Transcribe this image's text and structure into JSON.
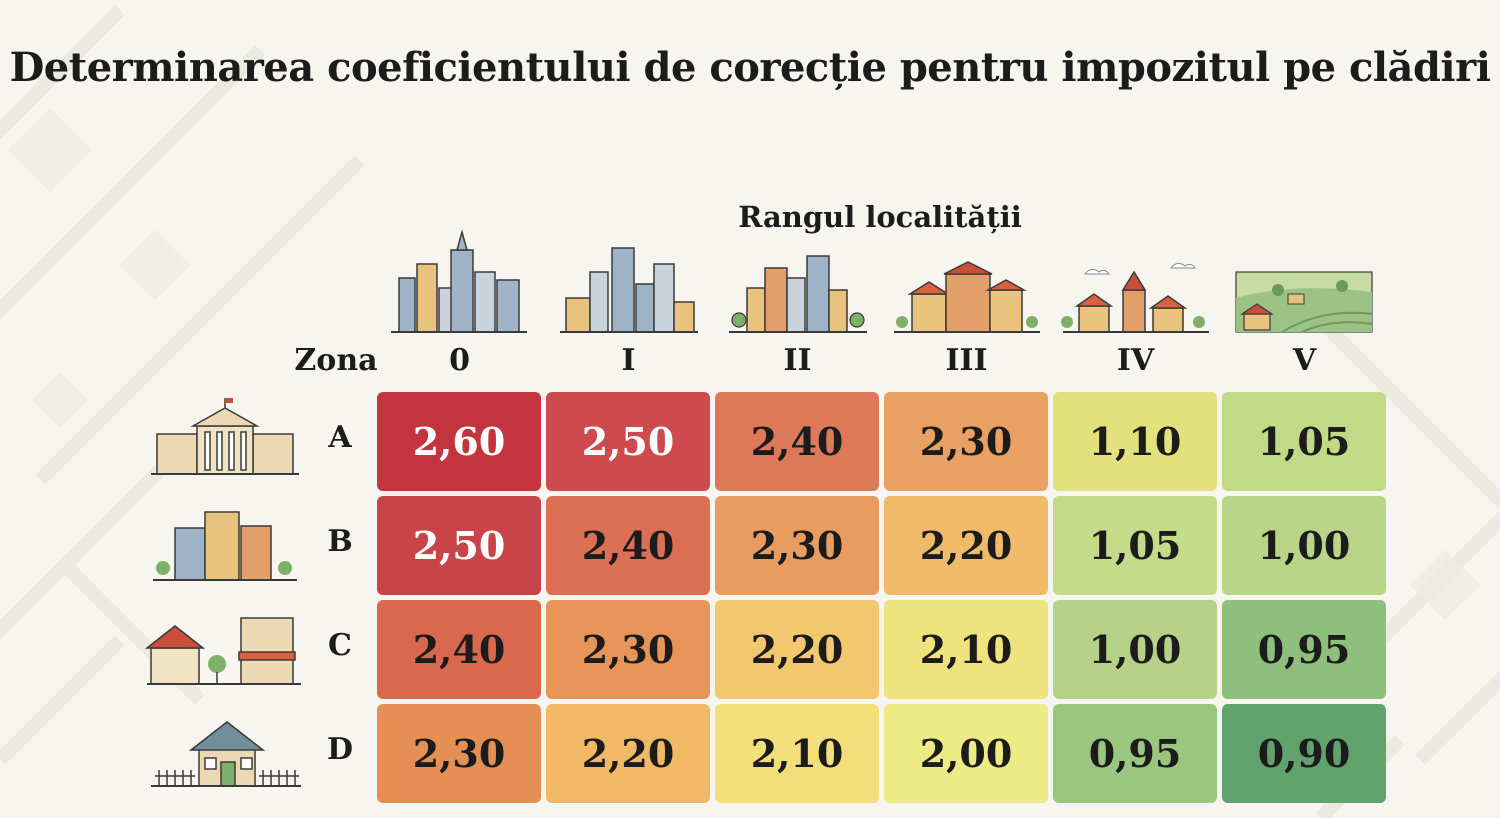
{
  "title": "Determinarea coeficientului de corecție pentru impozitul pe clădiri",
  "chart_data": {
    "type": "heatmap",
    "xlabel": "Rangul localității",
    "ylabel": "Zona",
    "x": [
      "0",
      "I",
      "II",
      "III",
      "IV",
      "V"
    ],
    "y": [
      "A",
      "B",
      "C",
      "D"
    ],
    "values": [
      [
        "2,60",
        "2,50",
        "2,40",
        "2,30",
        "1,10",
        "1,05"
      ],
      [
        "2,50",
        "2,40",
        "2,30",
        "2,20",
        "1,05",
        "1,00"
      ],
      [
        "2,40",
        "2,30",
        "2,20",
        "2,10",
        "1,00",
        "0,95"
      ],
      [
        "2,30",
        "2,20",
        "2,10",
        "2,00",
        "0,95",
        "0,90"
      ]
    ],
    "colors": [
      [
        "#c4343e",
        "#cd4a4e",
        "#dd7858",
        "#e9a062",
        "#e2e17e",
        "#c2da86"
      ],
      [
        "#c94448",
        "#dd6f54",
        "#e99c5f",
        "#efbb6a",
        "#c4dc89",
        "#b8d588"
      ],
      [
        "#d9684f",
        "#e79459",
        "#f2c76e",
        "#efe37e",
        "#b5d288",
        "#8fbf7d"
      ],
      [
        "#e68f54",
        "#f1b866",
        "#f3df79",
        "#eeea86",
        "#9bc67f",
        "#62a26c"
      ]
    ],
    "text_colors": [
      [
        "#ffffff",
        "#ffffff",
        "#1c1c1c",
        "#1c1c1c",
        "#1c1c1c",
        "#1c1c1c"
      ],
      [
        "#ffffff",
        "#1c1c1c",
        "#1c1c1c",
        "#1c1c1c",
        "#1c1c1c",
        "#1c1c1c"
      ],
      [
        "#1c1c1c",
        "#1c1c1c",
        "#1c1c1c",
        "#1c1c1c",
        "#1c1c1c",
        "#1c1c1c"
      ],
      [
        "#1c1c1c",
        "#1c1c1c",
        "#1c1c1c",
        "#1c1c1c",
        "#1c1c1c",
        "#1c1c1c"
      ]
    ],
    "column_icons": [
      "metropolis-skyline-icon",
      "large-city-skyline-icon",
      "city-skyline-icon",
      "town-buildings-icon",
      "small-town-icon",
      "village-countryside-icon"
    ],
    "row_icons": [
      "city-hall-icon",
      "apartment-blocks-icon",
      "houses-and-shop-icon",
      "single-house-icon"
    ]
  }
}
